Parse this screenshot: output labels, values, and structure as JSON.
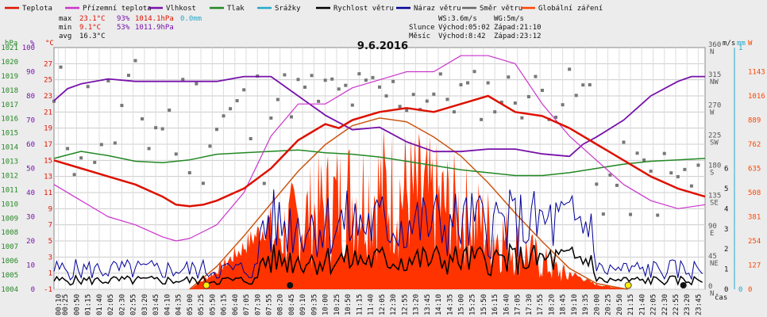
{
  "chart_data": {
    "type": "line",
    "title": "9.6.2016",
    "legend": [
      {
        "name": "Teplota",
        "color": "#dd1100"
      },
      {
        "name": "Přízemní teplota",
        "color": "#cc33cc"
      },
      {
        "name": "Vlhkost",
        "color": "#7711aa"
      },
      {
        "name": "Tlak",
        "color": "#228822"
      },
      {
        "name": "Srážky",
        "color": "#22aacc"
      },
      {
        "name": "Rychlost větru",
        "color": "#000000"
      },
      {
        "name": "Náraz větru",
        "color": "#000099"
      },
      {
        "name": "Směr větru",
        "color": "#666666"
      },
      {
        "name": "Globální záření",
        "color": "#ff4400"
      }
    ],
    "stats": [
      {
        "label": "max",
        "temp": "23.1°C",
        "hum": "93%",
        "press": "1014.1hPa",
        "rain": "0.0mm"
      },
      {
        "label": "min",
        "temp": "9.1°C",
        "hum": "53%",
        "press": "1011.9hPa",
        "rain": ""
      },
      {
        "label": "avg",
        "temp": "16.3°C",
        "hum": "",
        "press": "",
        "rain": ""
      }
    ],
    "info": {
      "wind": "WS:3.6m/s",
      "gust": "WG:5m/s",
      "sun_label": "Slunce",
      "sun_rise": "Východ:05:02",
      "sun_set": "Západ:21:10",
      "moon_label": "Měsíc",
      "moon_rise": "Východ:8:42",
      "moon_set": "Západ:23:12"
    },
    "axes": {
      "hpa": {
        "unit": "hPa",
        "min": 1004,
        "max": 1021,
        "ticks": [
          1004,
          1005,
          1006,
          1007,
          1008,
          1009,
          1010,
          1011,
          1012,
          1013,
          1014,
          1015,
          1016,
          1017,
          1018,
          1019,
          1020,
          1021
        ]
      },
      "humidity": {
        "unit": "%",
        "min": 0,
        "max": 100,
        "ticks": [
          0,
          10,
          20,
          30,
          40,
          50,
          60,
          70,
          80,
          90,
          100
        ]
      },
      "temperature": {
        "unit": "°C",
        "min": -1,
        "max": 29,
        "ticks": [
          -1,
          1,
          3,
          5,
          7,
          9,
          11,
          13,
          15,
          17,
          19,
          21,
          23,
          25,
          27
        ]
      },
      "direction": {
        "labels": [
          "N",
          "NE",
          "E",
          "SE",
          "S",
          "SW",
          "W",
          "NW",
          "N"
        ],
        "values": [
          0,
          45,
          90,
          135,
          180,
          225,
          270,
          315,
          360
        ]
      },
      "wind_ms": {
        "unit": "m/s",
        "min": 0,
        "max": 6,
        "ticks": [
          0,
          1,
          2,
          3,
          4,
          5,
          6
        ]
      },
      "rain_mm": {
        "unit": "mm",
        "min": 0,
        "max": 1,
        "ticks": [
          0,
          1
        ]
      },
      "radiation": {
        "unit": "W",
        "min": 0,
        "max": 1270,
        "ticks": [
          0,
          127,
          254,
          381,
          508,
          635,
          762,
          889,
          1016,
          1143
        ]
      },
      "x_label": "čas",
      "x_ticks": [
        "00:10",
        "00:25",
        "00:50",
        "01:15",
        "01:40",
        "02:05",
        "02:30",
        "02:55",
        "03:20",
        "03:45",
        "04:10",
        "04:35",
        "05:00",
        "05:25",
        "05:50",
        "06:15",
        "06:40",
        "07:05",
        "07:30",
        "07:55",
        "08:20",
        "08:45",
        "09:10",
        "09:35",
        "10:00",
        "10:25",
        "10:50",
        "11:15",
        "11:40",
        "12:05",
        "12:30",
        "12:55",
        "13:20",
        "13:45",
        "14:10",
        "14:35",
        "15:00",
        "15:25",
        "15:50",
        "16:15",
        "16:40",
        "17:05",
        "17:30",
        "17:55",
        "18:20",
        "18:45",
        "19:10",
        "19:35",
        "20:00",
        "20:25",
        "20:50",
        "21:15",
        "21:40",
        "22:05",
        "22:30",
        "22:55",
        "23:20",
        "23:45"
      ]
    },
    "series": {
      "temperature": {
        "hours": [
          0,
          1,
          2,
          3,
          4,
          4.5,
          5,
          5.5,
          6,
          7,
          8,
          9,
          10,
          10.5,
          11,
          12,
          13,
          14,
          15,
          16,
          16.5,
          17,
          18,
          19,
          19.5,
          20,
          21,
          22,
          23,
          24
        ],
        "values": [
          15,
          14,
          13,
          12,
          10.5,
          9.5,
          9.3,
          9.5,
          10,
          11.5,
          14,
          17.5,
          19.5,
          19,
          20,
          21,
          21.5,
          21,
          22,
          23,
          22,
          21,
          20.5,
          19,
          18,
          17,
          15,
          13,
          11.5,
          10.5
        ]
      },
      "felt_temperature": {
        "hours": [
          0,
          1,
          2,
          3,
          4,
          4.5,
          5,
          6,
          7,
          8,
          9,
          10,
          11,
          12,
          13,
          14,
          15,
          16,
          17,
          18,
          19,
          20,
          21,
          22,
          23,
          24
        ],
        "values": [
          12,
          10,
          8,
          7,
          5.5,
          5,
          5.3,
          7,
          11,
          18,
          22,
          22,
          24,
          25,
          26,
          26,
          28,
          28,
          27,
          22,
          18,
          15,
          12,
          10,
          9,
          9.5
        ]
      },
      "humidity": {
        "hours": [
          0,
          0.5,
          1,
          2,
          3,
          4,
          5,
          6,
          7,
          8,
          9,
          10,
          11,
          12,
          13,
          14,
          15,
          16,
          17,
          18,
          19,
          19.5,
          20,
          21,
          22,
          23,
          23.5,
          24
        ],
        "values": [
          78,
          83,
          85,
          87,
          86,
          86,
          86,
          86,
          88,
          88,
          80,
          72,
          66,
          67,
          61,
          57,
          57,
          58,
          58,
          56,
          55,
          60,
          63,
          70,
          80,
          86,
          88,
          88
        ]
      },
      "pressure": {
        "hours": [
          0,
          1,
          2,
          3,
          4,
          5,
          6,
          7,
          8,
          9,
          10,
          11,
          12,
          13,
          14,
          15,
          16,
          17,
          18,
          19,
          20,
          21,
          22,
          23,
          24
        ],
        "values": [
          1013.2,
          1013.7,
          1013.4,
          1013.0,
          1012.9,
          1013.1,
          1013.5,
          1013.6,
          1013.7,
          1013.8,
          1013.6,
          1013.5,
          1013.3,
          1013.0,
          1012.7,
          1012.4,
          1012.2,
          1012.0,
          1012.0,
          1012.2,
          1012.5,
          1012.8,
          1013.0,
          1013.1,
          1013.2
        ]
      },
      "radiation_envelope": {
        "hours": [
          5.0,
          6,
          7,
          8,
          9,
          10,
          11,
          12,
          13,
          14,
          15,
          16,
          17,
          18,
          19,
          20,
          21.15
        ],
        "values": [
          0,
          120,
          280,
          450,
          620,
          760,
          860,
          900,
          880,
          800,
          700,
          560,
          400,
          250,
          110,
          30,
          0
        ]
      }
    },
    "markers": {
      "sunrise": "05:02",
      "sunset": "21:10",
      "moonrise": "08:42",
      "moonset": "23:12"
    }
  }
}
